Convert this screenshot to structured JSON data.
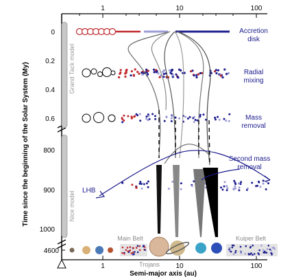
{
  "x_axis": {
    "title": "Semi-major axis (au)",
    "top_ticks": [
      "1",
      "10",
      "100"
    ],
    "bottom_ticks": [
      "1",
      "10",
      "100"
    ]
  },
  "y_axis": {
    "title": "Time since the beginning of the Solar System (My)",
    "ticks": [
      "0",
      "0.2",
      "0.4",
      "0.6",
      "800",
      "900",
      "1000",
      "4600"
    ]
  },
  "models": {
    "grand_tack": "Grand Tack model",
    "nice": "Nice model"
  },
  "phases": {
    "accretion": [
      "Accretion",
      "disk"
    ],
    "radial": [
      "Radial",
      "mixing"
    ],
    "mass_removal": [
      "Mass",
      "removal"
    ],
    "second_mass_removal": [
      "Second mass",
      "removal"
    ],
    "lhb": "LHB"
  },
  "regions": {
    "main_belt": "Main Belt",
    "kuiper_belt": "Kuiper Belt",
    "trojans": "Trojans"
  },
  "colors": {
    "planetesimal_inner": "#c0282d",
    "planetesimal_outer": "#1f1f8f",
    "planetesimal_light": "#9a9ad6",
    "label_blue": "#1a1a8c",
    "track_grey": "#9a9a9a"
  }
}
